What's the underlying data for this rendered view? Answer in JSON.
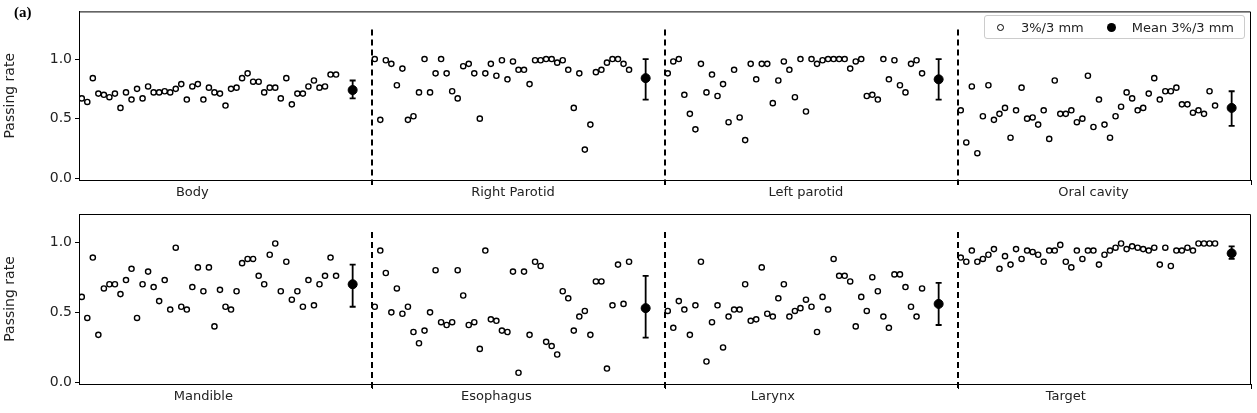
{
  "chart_data": [
    {
      "type": "scatter",
      "ylabel": "Passing rate",
      "annotations": [
        "(a)"
      ],
      "marker": "circle",
      "legend": "top right",
      "grid": false,
      "categories": [
        null,
        null,
        null,
        null,
        null,
        null,
        null,
        null,
        null,
        null,
        null,
        null,
        null,
        null,
        null,
        null,
        null,
        null,
        null,
        null,
        "Body",
        null,
        null,
        null,
        null,
        null,
        null,
        null,
        null,
        null,
        null,
        null,
        null,
        null,
        null,
        null,
        null,
        null,
        null,
        null,
        null,
        null,
        null,
        null,
        null,
        null,
        null,
        null,
        null,
        null,
        null,
        null,
        null,
        null,
        null,
        null,
        null,
        null,
        null,
        null,
        null,
        null,
        null,
        null,
        null,
        null,
        null,
        null,
        null,
        null,
        null,
        null,
        null,
        null,
        null,
        null,
        null,
        null,
        "Right Parotid",
        null,
        null,
        null,
        null,
        null,
        null,
        null,
        null,
        null,
        null,
        null,
        null,
        null,
        null,
        null,
        null,
        null,
        null,
        null,
        null,
        null,
        null,
        null,
        null,
        null,
        null,
        null,
        null,
        null,
        null,
        null,
        null,
        null,
        null,
        null,
        null,
        null,
        null,
        null,
        null,
        null,
        null,
        null,
        null,
        null,
        null,
        null,
        null,
        null,
        null,
        null,
        null,
        "Left parotid",
        null,
        null,
        null,
        null,
        null,
        null,
        null,
        null,
        null,
        null,
        null,
        null,
        null,
        null,
        null,
        null,
        null,
        null,
        null,
        null,
        null,
        null,
        null,
        null,
        null,
        null,
        null,
        null,
        null,
        null,
        null,
        null,
        null,
        null,
        null,
        null,
        null,
        null,
        null,
        null,
        null,
        null,
        null,
        null,
        null,
        null,
        null,
        null,
        null,
        null,
        null,
        "Oral cavity",
        null,
        null,
        null,
        null,
        null,
        null,
        null,
        null,
        null,
        null,
        null,
        null,
        null,
        null,
        null,
        null,
        null,
        null,
        null,
        null,
        null,
        null,
        null,
        null,
        null,
        null,
        null,
        null
      ],
      "ylim": [
        -0.015,
        1.4
      ],
      "yticks": [
        {
          "value": 0,
          "label": "0.0"
        },
        {
          "value": 0.5,
          "label": "0.5"
        },
        {
          "value": 1,
          "label": "1.0"
        }
      ],
      "series": [
        {
          "name": "3%/3 mm",
          "color": "#000000",
          "values": [
            0.67,
            0.64,
            0.84,
            0.71,
            0.7,
            0.68,
            0.71,
            0.59,
            0.72,
            0.66,
            0.75,
            0.67,
            0.77,
            0.72,
            0.72,
            0.73,
            0.72,
            0.75,
            0.79,
            0.66,
            0.77,
            0.79,
            0.66,
            0.76,
            0.72,
            0.71,
            0.61,
            0.75,
            0.76,
            0.84,
            0.88,
            0.81,
            0.81,
            0.72,
            0.76,
            0.76,
            0.67,
            0.84,
            0.62,
            0.71,
            0.71,
            0.77,
            0.82,
            0.76,
            0.77,
            0.87,
            0.87,
            null,
            null,
            null,
            null,
            null,
            null,
            1.0,
            0.49,
            0.99,
            0.96,
            0.78,
            0.92,
            0.49,
            0.52,
            0.72,
            1.0,
            0.72,
            0.88,
            1.0,
            0.88,
            0.73,
            0.67,
            0.94,
            0.96,
            0.88,
            0.5,
            0.88,
            0.96,
            0.86,
            0.99,
            0.83,
            0.98,
            0.91,
            0.91,
            0.79,
            0.99,
            0.99,
            1.0,
            1.0,
            0.97,
            0.99,
            0.91,
            0.59,
            0.88,
            0.24,
            0.45,
            0.89,
            0.91,
            0.97,
            1.0,
            1.0,
            0.96,
            0.91,
            null,
            null,
            null,
            null,
            null,
            null,
            0.88,
            0.98,
            1.0,
            0.7,
            0.54,
            0.41,
            0.96,
            0.72,
            0.87,
            0.69,
            0.79,
            0.47,
            0.91,
            0.51,
            0.32,
            0.96,
            0.83,
            0.96,
            0.96,
            0.63,
            0.82,
            0.98,
            0.91,
            0.68,
            1.0,
            0.56,
            1.0,
            0.96,
            0.99,
            1.0,
            1.0,
            1.0,
            1.0,
            0.92,
            0.98,
            1.0,
            0.69,
            0.7,
            0.66,
            1.0,
            0.83,
            0.99,
            0.78,
            0.72,
            0.96,
            0.99,
            0.88,
            null,
            null,
            null,
            null,
            null,
            null,
            0.57,
            0.3,
            0.77,
            0.21,
            0.52,
            0.78,
            0.49,
            0.54,
            0.59,
            0.34,
            0.57,
            0.76,
            0.5,
            0.51,
            0.45,
            0.57,
            0.33,
            0.82,
            0.54,
            0.54,
            0.57,
            0.47,
            0.5,
            0.86,
            0.43,
            0.66,
            0.45,
            0.34,
            0.52,
            0.6,
            0.72,
            0.67,
            0.57,
            0.59,
            0.71,
            0.84,
            0.66,
            0.73,
            0.73,
            0.76,
            0.62,
            0.62,
            0.55,
            0.57,
            0.54,
            0.73,
            0.61,
            null,
            null,
            null,
            null,
            null,
            null
          ]
        },
        {
          "name": "Mean 3%/3 mm",
          "color": "#000000",
          "values": [
            null,
            null,
            null,
            null,
            null,
            null,
            null,
            null,
            null,
            null,
            null,
            null,
            null,
            null,
            null,
            null,
            null,
            null,
            null,
            null,
            null,
            null,
            null,
            null,
            null,
            null,
            null,
            null,
            null,
            null,
            null,
            null,
            null,
            null,
            null,
            null,
            null,
            null,
            null,
            null,
            null,
            null,
            null,
            null,
            null,
            null,
            null,
            null,
            null,
            0.74,
            null,
            null,
            null,
            null,
            null,
            null,
            null,
            null,
            null,
            null,
            null,
            null,
            null,
            null,
            null,
            null,
            null,
            null,
            null,
            null,
            null,
            null,
            null,
            null,
            null,
            null,
            null,
            null,
            null,
            null,
            null,
            null,
            null,
            null,
            null,
            null,
            null,
            null,
            null,
            null,
            null,
            null,
            null,
            null,
            null,
            null,
            null,
            null,
            null,
            null,
            null,
            null,
            0.84,
            null,
            null,
            null,
            null,
            null,
            null,
            null,
            null,
            null,
            null,
            null,
            null,
            null,
            null,
            null,
            null,
            null,
            null,
            null,
            null,
            null,
            null,
            null,
            null,
            null,
            null,
            null,
            null,
            null,
            null,
            null,
            null,
            null,
            null,
            null,
            null,
            null,
            null,
            null,
            null,
            null,
            null,
            null,
            null,
            null,
            null,
            null,
            null,
            null,
            null,
            null,
            null,
            0.83,
            null,
            null,
            null,
            null,
            null,
            null,
            null,
            null,
            null,
            null,
            null,
            null,
            null,
            null,
            null,
            null,
            null,
            null,
            null,
            null,
            null,
            null,
            null,
            null,
            null,
            null,
            null,
            null,
            null,
            null,
            null,
            null,
            null,
            null,
            null,
            null,
            null,
            null,
            null,
            null,
            null,
            null,
            null,
            null,
            null,
            null,
            null,
            null,
            null,
            null,
            null,
            null,
            0.59,
            null,
            null,
            null
          ],
          "errors": [
            null,
            null,
            null,
            null,
            null,
            null,
            null,
            null,
            null,
            null,
            null,
            null,
            null,
            null,
            null,
            null,
            null,
            null,
            null,
            null,
            null,
            null,
            null,
            null,
            null,
            null,
            null,
            null,
            null,
            null,
            null,
            null,
            null,
            null,
            null,
            null,
            null,
            null,
            null,
            null,
            null,
            null,
            null,
            null,
            null,
            null,
            null,
            null,
            null,
            [
              0.67,
              0.82
            ],
            null,
            null,
            null,
            null,
            null,
            null,
            null,
            null,
            null,
            null,
            null,
            null,
            null,
            null,
            null,
            null,
            null,
            null,
            null,
            null,
            null,
            null,
            null,
            null,
            null,
            null,
            null,
            null,
            null,
            null,
            null,
            null,
            null,
            null,
            null,
            null,
            null,
            null,
            null,
            null,
            null,
            null,
            null,
            null,
            null,
            null,
            null,
            null,
            null,
            null,
            null,
            null,
            [
              0.66,
              1.0
            ],
            null,
            null,
            null,
            null,
            null,
            null,
            null,
            null,
            null,
            null,
            null,
            null,
            null,
            null,
            null,
            null,
            null,
            null,
            null,
            null,
            null,
            null,
            null,
            null,
            null,
            null,
            null,
            null,
            null,
            null,
            null,
            null,
            null,
            null,
            null,
            null,
            null,
            null,
            null,
            null,
            null,
            null,
            null,
            null,
            null,
            null,
            null,
            null,
            null,
            null,
            null,
            null,
            [
              0.66,
              1.0
            ],
            null,
            null,
            null,
            null,
            null,
            null,
            null,
            null,
            null,
            null,
            null,
            null,
            null,
            null,
            null,
            null,
            null,
            null,
            null,
            null,
            null,
            null,
            null,
            null,
            null,
            null,
            null,
            null,
            null,
            null,
            null,
            null,
            null,
            null,
            null,
            null,
            null,
            null,
            null,
            null,
            null,
            null,
            null,
            null,
            null,
            null,
            null,
            null,
            null,
            null,
            null,
            null,
            [
              0.44,
              0.73
            ],
            null,
            null,
            null
          ]
        }
      ]
    },
    {
      "type": "scatter",
      "ylabel": "Passing rate",
      "marker": "circle",
      "grid": false,
      "categories": [
        null,
        null,
        null,
        null,
        null,
        null,
        null,
        null,
        null,
        null,
        null,
        null,
        null,
        null,
        null,
        null,
        null,
        null,
        null,
        null,
        null,
        null,
        "Mandible",
        null,
        null,
        null,
        null,
        null,
        null,
        null,
        null,
        null,
        null,
        null,
        null,
        null,
        null,
        null,
        null,
        null,
        null,
        null,
        null,
        null,
        null,
        null,
        null,
        null,
        null,
        null,
        null,
        null,
        null,
        null,
        null,
        null,
        null,
        null,
        null,
        null,
        null,
        null,
        null,
        null,
        null,
        null,
        null,
        null,
        null,
        null,
        null,
        null,
        null,
        null,
        null,
        "Esophagus",
        null,
        null,
        null,
        null,
        null,
        null,
        null,
        null,
        null,
        null,
        null,
        null,
        null,
        null,
        null,
        null,
        null,
        null,
        null,
        null,
        null,
        null,
        null,
        null,
        null,
        null,
        null,
        null,
        null,
        null,
        null,
        null,
        null,
        null,
        null,
        null,
        null,
        null,
        null,
        null,
        null,
        null,
        null,
        null,
        null,
        null,
        null,
        null,
        null,
        "Larynx",
        null,
        null,
        null,
        null,
        null,
        null,
        null,
        null,
        null,
        null,
        null,
        null,
        null,
        null,
        null,
        null,
        null,
        null,
        null,
        null,
        null,
        null,
        null,
        null,
        null,
        null,
        null,
        null,
        null,
        null,
        null,
        null,
        null,
        null,
        null,
        null,
        null,
        null,
        null,
        null,
        null,
        null,
        null,
        null,
        null,
        null,
        null,
        null,
        null,
        null,
        null,
        null,
        "Target",
        null,
        null,
        null,
        null,
        null,
        null,
        null,
        null,
        null,
        null,
        null,
        null,
        null,
        null,
        null,
        null,
        null,
        null,
        null,
        null,
        null,
        null,
        null,
        null,
        null,
        null,
        null,
        null,
        null,
        null,
        null,
        null,
        null
      ],
      "ylim": [
        -0.01,
        1.2
      ],
      "yticks": [
        {
          "value": 0,
          "label": "0.0"
        },
        {
          "value": 0.5,
          "label": "0.5"
        },
        {
          "value": 1,
          "label": "1.0"
        }
      ],
      "series": [
        {
          "color": "#000000",
          "values": [
            0.61,
            0.46,
            0.89,
            0.34,
            0.67,
            0.7,
            0.7,
            0.63,
            0.73,
            0.81,
            0.46,
            0.7,
            0.79,
            0.68,
            0.58,
            0.73,
            0.52,
            0.96,
            0.54,
            0.52,
            0.68,
            0.82,
            0.65,
            0.82,
            0.4,
            0.66,
            0.54,
            0.52,
            0.65,
            0.85,
            0.88,
            0.88,
            0.76,
            0.7,
            0.91,
            0.99,
            0.65,
            0.86,
            0.59,
            0.65,
            0.54,
            0.73,
            0.55,
            0.7,
            0.76,
            0.89,
            0.76,
            null,
            null,
            null,
            null,
            null,
            null,
            0.54,
            0.94,
            0.78,
            0.5,
            0.67,
            0.49,
            0.54,
            0.36,
            0.28,
            0.37,
            0.5,
            0.8,
            0.43,
            0.41,
            0.43,
            0.8,
            0.62,
            0.41,
            0.43,
            0.24,
            0.94,
            0.45,
            0.44,
            0.37,
            0.36,
            0.79,
            0.07,
            0.79,
            0.34,
            0.86,
            0.83,
            0.29,
            0.26,
            0.2,
            0.65,
            0.6,
            0.37,
            0.47,
            0.51,
            0.34,
            0.72,
            0.72,
            0.1,
            0.55,
            0.84,
            0.56,
            0.86,
            null,
            null,
            null,
            null,
            null,
            null,
            0.51,
            0.39,
            0.58,
            0.52,
            0.34,
            0.55,
            0.86,
            0.15,
            0.43,
            0.55,
            0.25,
            0.47,
            0.52,
            0.52,
            0.7,
            0.44,
            0.45,
            0.82,
            0.49,
            0.47,
            0.6,
            0.7,
            0.47,
            0.51,
            0.53,
            0.59,
            0.54,
            0.36,
            0.61,
            0.52,
            0.88,
            0.76,
            0.76,
            0.72,
            0.4,
            0.61,
            0.51,
            0.75,
            0.65,
            0.47,
            0.39,
            0.77,
            0.77,
            0.68,
            0.54,
            0.47,
            0.67,
            null,
            null,
            null,
            null,
            null,
            null,
            0.89,
            0.86,
            0.94,
            0.86,
            0.88,
            0.91,
            0.95,
            0.81,
            0.9,
            0.84,
            0.95,
            0.88,
            0.94,
            0.93,
            0.91,
            0.86,
            0.94,
            0.94,
            0.98,
            0.86,
            0.82,
            0.94,
            0.88,
            0.94,
            0.94,
            0.84,
            0.91,
            0.94,
            0.96,
            0.99,
            0.95,
            0.97,
            0.96,
            0.95,
            0.94,
            0.96,
            0.84,
            0.96,
            0.83,
            0.94,
            0.94,
            0.96,
            0.94,
            0.99,
            0.99,
            0.99,
            0.99,
            null,
            null,
            null,
            null,
            null,
            null
          ]
        },
        {
          "color": "#000000",
          "values": [
            null,
            null,
            null,
            null,
            null,
            null,
            null,
            null,
            null,
            null,
            null,
            null,
            null,
            null,
            null,
            null,
            null,
            null,
            null,
            null,
            null,
            null,
            null,
            null,
            null,
            null,
            null,
            null,
            null,
            null,
            null,
            null,
            null,
            null,
            null,
            null,
            null,
            null,
            null,
            null,
            null,
            null,
            null,
            null,
            null,
            null,
            null,
            null,
            null,
            0.7,
            null,
            null,
            null,
            null,
            null,
            null,
            null,
            null,
            null,
            null,
            null,
            null,
            null,
            null,
            null,
            null,
            null,
            null,
            null,
            null,
            null,
            null,
            null,
            null,
            null,
            null,
            null,
            null,
            null,
            null,
            null,
            null,
            null,
            null,
            null,
            null,
            null,
            null,
            null,
            null,
            null,
            null,
            null,
            null,
            null,
            null,
            null,
            null,
            null,
            null,
            null,
            null,
            0.53,
            null,
            null,
            null,
            null,
            null,
            null,
            null,
            null,
            null,
            null,
            null,
            null,
            null,
            null,
            null,
            null,
            null,
            null,
            null,
            null,
            null,
            null,
            null,
            null,
            null,
            null,
            null,
            null,
            null,
            null,
            null,
            null,
            null,
            null,
            null,
            null,
            null,
            null,
            null,
            null,
            null,
            null,
            null,
            null,
            null,
            null,
            null,
            null,
            null,
            null,
            null,
            null,
            0.56,
            null,
            null,
            null,
            null,
            null,
            null,
            null,
            null,
            null,
            null,
            null,
            null,
            null,
            null,
            null,
            null,
            null,
            null,
            null,
            null,
            null,
            null,
            null,
            null,
            null,
            null,
            null,
            null,
            null,
            null,
            null,
            null,
            null,
            null,
            null,
            null,
            null,
            null,
            null,
            null,
            null,
            null,
            null,
            null,
            null,
            null,
            null,
            null,
            null,
            null,
            null,
            null,
            0.92,
            null,
            null,
            null
          ],
          "errors": [
            null,
            null,
            null,
            null,
            null,
            null,
            null,
            null,
            null,
            null,
            null,
            null,
            null,
            null,
            null,
            null,
            null,
            null,
            null,
            null,
            null,
            null,
            null,
            null,
            null,
            null,
            null,
            null,
            null,
            null,
            null,
            null,
            null,
            null,
            null,
            null,
            null,
            null,
            null,
            null,
            null,
            null,
            null,
            null,
            null,
            null,
            null,
            null,
            null,
            [
              0.54,
              0.84
            ],
            null,
            null,
            null,
            null,
            null,
            null,
            null,
            null,
            null,
            null,
            null,
            null,
            null,
            null,
            null,
            null,
            null,
            null,
            null,
            null,
            null,
            null,
            null,
            null,
            null,
            null,
            null,
            null,
            null,
            null,
            null,
            null,
            null,
            null,
            null,
            null,
            null,
            null,
            null,
            null,
            null,
            null,
            null,
            null,
            null,
            null,
            null,
            null,
            null,
            null,
            null,
            null,
            [
              0.32,
              0.76
            ],
            null,
            null,
            null,
            null,
            null,
            null,
            null,
            null,
            null,
            null,
            null,
            null,
            null,
            null,
            null,
            null,
            null,
            null,
            null,
            null,
            null,
            null,
            null,
            null,
            null,
            null,
            null,
            null,
            null,
            null,
            null,
            null,
            null,
            null,
            null,
            null,
            null,
            null,
            null,
            null,
            null,
            null,
            null,
            null,
            null,
            null,
            null,
            null,
            null,
            null,
            null,
            null,
            [
              0.41,
              0.71
            ],
            null,
            null,
            null,
            null,
            null,
            null,
            null,
            null,
            null,
            null,
            null,
            null,
            null,
            null,
            null,
            null,
            null,
            null,
            null,
            null,
            null,
            null,
            null,
            null,
            null,
            null,
            null,
            null,
            null,
            null,
            null,
            null,
            null,
            null,
            null,
            null,
            null,
            null,
            null,
            null,
            null,
            null,
            null,
            null,
            null,
            null,
            null,
            null,
            null,
            null,
            null,
            null,
            [
              0.88,
              0.97
            ],
            null,
            null,
            null
          ]
        }
      ]
    }
  ]
}
